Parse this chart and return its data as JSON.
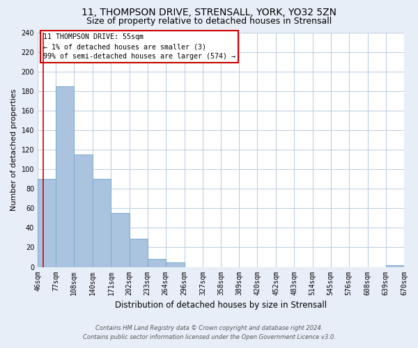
{
  "title1": "11, THOMPSON DRIVE, STRENSALL, YORK, YO32 5ZN",
  "title2": "Size of property relative to detached houses in Strensall",
  "xlabel": "Distribution of detached houses by size in Strensall",
  "ylabel": "Number of detached properties",
  "bin_edges": [
    46,
    77,
    108,
    140,
    171,
    202,
    233,
    264,
    296,
    327,
    358,
    389,
    420,
    452,
    483,
    514,
    545,
    576,
    608,
    639,
    670
  ],
  "bar_heights": [
    90,
    185,
    115,
    90,
    55,
    29,
    8,
    5,
    0,
    0,
    0,
    0,
    0,
    0,
    0,
    0,
    0,
    0,
    0,
    2
  ],
  "bar_color": "#aac4e0",
  "bar_edge_color": "#7aaad0",
  "annotation_title": "11 THOMPSON DRIVE: 55sqm",
  "annotation_line1": "← 1% of detached houses are smaller (3)",
  "annotation_line2": "99% of semi-detached houses are larger (574) →",
  "annotation_box_color": "#ffffff",
  "annotation_box_edge": "#cc0000",
  "ylim": [
    0,
    240
  ],
  "tick_labels": [
    "46sqm",
    "77sqm",
    "108sqm",
    "140sqm",
    "171sqm",
    "202sqm",
    "233sqm",
    "264sqm",
    "296sqm",
    "327sqm",
    "358sqm",
    "389sqm",
    "420sqm",
    "452sqm",
    "483sqm",
    "514sqm",
    "545sqm",
    "576sqm",
    "608sqm",
    "639sqm",
    "670sqm"
  ],
  "footer1": "Contains HM Land Registry data © Crown copyright and database right 2024.",
  "footer2": "Contains public sector information licensed under the Open Government Licence v3.0.",
  "bg_color": "#e8eef8",
  "plot_bg_color": "#ffffff",
  "grid_color": "#c0cfe0",
  "red_line_x": 55,
  "title1_fontsize": 10,
  "title2_fontsize": 9
}
